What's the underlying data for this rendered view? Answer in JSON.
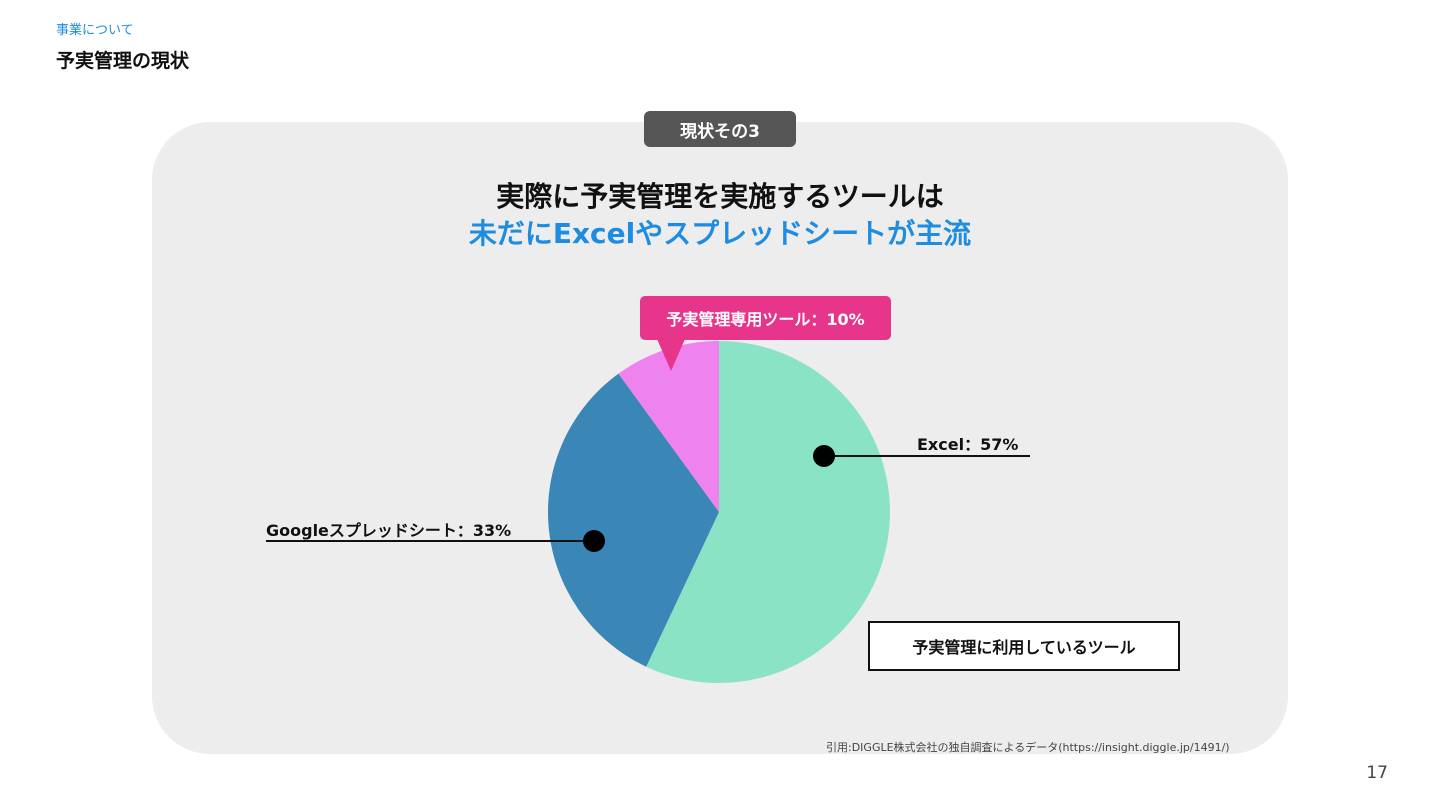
{
  "header": {
    "section": "事業について",
    "title": "予実管理の現状"
  },
  "badge": "現状その3",
  "headline": {
    "line1": "実際に予実管理を実施するツールは",
    "line2": "未だにExcelやスプレッドシートが主流"
  },
  "chart_data": {
    "type": "pie",
    "title": "予実管理に利用しているツール",
    "start_angle_deg": 0,
    "direction": "clockwise",
    "slices": [
      {
        "name": "Excel",
        "value": 57,
        "label": "Excel：57%",
        "color": "#8be3c6"
      },
      {
        "name": "Googleスプレッドシート",
        "value": 33,
        "label": "Googleスプレッドシート：33%",
        "color": "#3a86b6"
      },
      {
        "name": "予実管理専用ツール",
        "value": 10,
        "label": "予実管理専用ツール：10%",
        "color": "#ee82ee"
      }
    ]
  },
  "colors": {
    "accent_blue": "#1e8ce0",
    "callout_pink": "#e6358b",
    "panel_gray": "#ededed",
    "badge_gray": "#555555"
  },
  "source": "引用:DIGGLE株式会社の独自調査によるデータ(https://insight.diggle.jp/1491/)",
  "page_number": "17"
}
